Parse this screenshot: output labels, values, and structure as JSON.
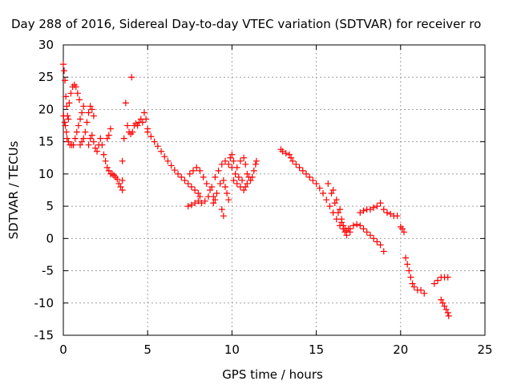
{
  "chart_data": {
    "type": "scatter",
    "title": "Day 288 of 2016, Sidereal Day-to-day VTEC variation (SDTVAR) for receiver ro",
    "xlabel": "GPS time / hours",
    "ylabel": "SDTVAR / TECUs",
    "xlim": [
      0,
      25
    ],
    "ylim": [
      -15,
      30
    ],
    "x_ticks": [
      0,
      5,
      10,
      15,
      20,
      25
    ],
    "y_ticks": [
      -15,
      -10,
      -5,
      0,
      5,
      10,
      15,
      20,
      25,
      30
    ],
    "grid": true,
    "marker": "plus",
    "color": "#ff0000",
    "series": [
      {
        "points": [
          [
            0.0,
            27.0
          ],
          [
            0.05,
            26.0
          ],
          [
            0.1,
            24.5
          ],
          [
            0.15,
            22.0
          ],
          [
            0.2,
            20.5
          ],
          [
            0.25,
            19.0
          ],
          [
            0.3,
            18.5
          ],
          [
            0.02,
            19.0
          ],
          [
            0.08,
            18.0
          ],
          [
            0.12,
            17.5
          ],
          [
            0.18,
            16.5
          ],
          [
            0.22,
            15.5
          ],
          [
            0.3,
            15.0
          ],
          [
            0.4,
            14.5
          ],
          [
            0.5,
            14.5
          ],
          [
            0.35,
            21.0
          ],
          [
            0.45,
            22.5
          ],
          [
            0.55,
            23.5
          ],
          [
            0.65,
            23.8
          ],
          [
            0.75,
            23.5
          ],
          [
            0.85,
            22.5
          ],
          [
            0.95,
            21.5
          ],
          [
            0.6,
            14.5
          ],
          [
            0.7,
            15.5
          ],
          [
            0.8,
            16.5
          ],
          [
            0.9,
            17.5
          ],
          [
            1.0,
            18.5
          ],
          [
            1.1,
            19.5
          ],
          [
            1.2,
            20.5
          ],
          [
            1.0,
            14.5
          ],
          [
            1.1,
            15.0
          ],
          [
            1.2,
            15.5
          ],
          [
            1.3,
            16.5
          ],
          [
            1.4,
            18.0
          ],
          [
            1.5,
            19.5
          ],
          [
            1.6,
            20.5
          ],
          [
            1.7,
            20.0
          ],
          [
            1.8,
            19.0
          ],
          [
            1.5,
            14.5
          ],
          [
            1.6,
            15.5
          ],
          [
            1.7,
            16.0
          ],
          [
            1.8,
            15.0
          ],
          [
            1.9,
            14.0
          ],
          [
            2.0,
            13.5
          ],
          [
            2.1,
            14.5
          ],
          [
            2.2,
            15.5
          ],
          [
            2.3,
            14.5
          ],
          [
            2.4,
            13.0
          ],
          [
            2.5,
            12.0
          ],
          [
            2.6,
            11.0
          ],
          [
            2.7,
            10.5
          ],
          [
            2.8,
            10.0
          ],
          [
            2.9,
            10.0
          ],
          [
            3.0,
            9.8
          ],
          [
            3.1,
            9.5
          ],
          [
            3.2,
            9.2
          ],
          [
            3.3,
            8.5
          ],
          [
            3.4,
            8.0
          ],
          [
            3.5,
            7.5
          ],
          [
            3.5,
            12.0
          ],
          [
            3.5,
            9.0
          ],
          [
            2.7,
            16.0
          ],
          [
            2.8,
            17.0
          ],
          [
            2.6,
            15.5
          ],
          [
            3.6,
            15.5
          ],
          [
            3.8,
            17.5
          ],
          [
            3.9,
            16.5
          ],
          [
            4.0,
            16.2
          ],
          [
            4.1,
            16.5
          ],
          [
            4.2,
            17.5
          ],
          [
            4.3,
            17.8
          ],
          [
            4.4,
            17.5
          ],
          [
            4.5,
            18.0
          ],
          [
            4.6,
            18.5
          ],
          [
            4.7,
            18.0
          ],
          [
            4.8,
            19.5
          ],
          [
            4.9,
            18.5
          ],
          [
            5.0,
            17.0
          ],
          [
            3.7,
            21.0
          ],
          [
            4.05,
            25.0
          ]
        ]
      },
      {
        "points": [
          [
            5.0,
            16.5
          ],
          [
            5.2,
            15.8
          ],
          [
            5.4,
            15.0
          ],
          [
            5.6,
            14.3
          ],
          [
            5.8,
            13.5
          ],
          [
            6.0,
            12.7
          ],
          [
            6.2,
            12.0
          ],
          [
            6.4,
            11.3
          ],
          [
            6.6,
            10.6
          ],
          [
            6.8,
            10.0
          ],
          [
            7.0,
            9.5
          ],
          [
            7.2,
            9.0
          ],
          [
            7.4,
            8.5
          ],
          [
            7.6,
            8.0
          ],
          [
            7.8,
            7.5
          ],
          [
            8.0,
            7.0
          ],
          [
            8.1,
            6.5
          ],
          [
            7.5,
            10.0
          ],
          [
            7.7,
            10.5
          ],
          [
            7.9,
            11.0
          ],
          [
            8.1,
            10.5
          ],
          [
            8.3,
            9.5
          ],
          [
            8.5,
            8.5
          ],
          [
            8.7,
            7.5
          ],
          [
            8.9,
            6.5
          ],
          [
            9.0,
            6.0
          ],
          [
            7.4,
            5.0
          ],
          [
            7.6,
            5.2
          ],
          [
            7.8,
            5.5
          ],
          [
            8.0,
            5.8
          ],
          [
            8.2,
            5.5
          ],
          [
            8.4,
            5.8
          ],
          [
            8.6,
            6.5
          ],
          [
            8.8,
            8.0
          ],
          [
            9.0,
            9.5
          ],
          [
            9.2,
            10.5
          ],
          [
            9.4,
            11.5
          ],
          [
            9.6,
            12.0
          ],
          [
            9.8,
            11.5
          ],
          [
            10.0,
            11.0
          ],
          [
            10.2,
            10.0
          ],
          [
            10.4,
            9.5
          ],
          [
            10.6,
            9.0
          ],
          [
            8.9,
            5.5
          ],
          [
            9.1,
            7.0
          ],
          [
            9.3,
            8.5
          ],
          [
            9.5,
            9.0
          ],
          [
            9.6,
            8.0
          ],
          [
            9.7,
            7.0
          ],
          [
            9.8,
            6.0
          ],
          [
            9.4,
            4.5
          ],
          [
            9.5,
            3.5
          ],
          [
            9.9,
            12.5
          ],
          [
            10.0,
            13.0
          ],
          [
            10.1,
            12.0
          ],
          [
            10.3,
            11.0
          ],
          [
            10.5,
            12.0
          ],
          [
            10.7,
            12.5
          ],
          [
            10.8,
            11.5
          ],
          [
            10.9,
            10.0
          ],
          [
            11.0,
            9.5
          ],
          [
            11.1,
            9.0
          ],
          [
            11.2,
            9.5
          ],
          [
            11.3,
            10.5
          ],
          [
            11.4,
            11.5
          ],
          [
            11.45,
            12.0
          ],
          [
            10.1,
            9.0
          ],
          [
            10.3,
            8.5
          ],
          [
            10.5,
            8.0
          ],
          [
            10.7,
            7.5
          ],
          [
            10.8,
            8.0
          ],
          [
            10.9,
            8.5
          ]
        ]
      },
      {
        "points": [
          [
            12.9,
            13.8
          ],
          [
            13.0,
            13.5
          ],
          [
            13.2,
            13.2
          ],
          [
            13.4,
            13.0
          ],
          [
            13.5,
            12.5
          ],
          [
            13.6,
            12.0
          ],
          [
            13.8,
            11.5
          ],
          [
            14.0,
            11.0
          ],
          [
            14.2,
            10.5
          ],
          [
            14.4,
            10.0
          ],
          [
            14.6,
            9.5
          ],
          [
            14.8,
            9.0
          ],
          [
            15.0,
            8.5
          ],
          [
            15.2,
            7.8
          ],
          [
            15.4,
            7.0
          ],
          [
            15.6,
            6.0
          ],
          [
            15.8,
            5.0
          ],
          [
            16.0,
            4.0
          ],
          [
            16.2,
            3.0
          ],
          [
            16.4,
            2.0
          ],
          [
            16.6,
            1.5
          ],
          [
            16.8,
            1.2
          ],
          [
            17.0,
            1.0
          ],
          [
            15.7,
            8.5
          ],
          [
            15.9,
            7.0
          ],
          [
            16.1,
            5.5
          ],
          [
            16.3,
            4.0
          ],
          [
            16.5,
            2.5
          ],
          [
            16.7,
            1.5
          ],
          [
            16.9,
            1.5
          ],
          [
            16.0,
            7.5
          ],
          [
            16.2,
            6.0
          ],
          [
            16.4,
            4.5
          ],
          [
            16.5,
            3.0
          ],
          [
            16.6,
            2.0
          ],
          [
            16.7,
            1.0
          ],
          [
            16.8,
            0.5
          ],
          [
            17.0,
            1.5
          ],
          [
            17.2,
            2.0
          ],
          [
            17.4,
            2.2
          ],
          [
            17.6,
            2.0
          ],
          [
            17.8,
            1.5
          ],
          [
            18.0,
            1.0
          ],
          [
            18.2,
            0.5
          ],
          [
            18.4,
            0.0
          ],
          [
            18.6,
            -0.5
          ],
          [
            18.8,
            -1.0
          ],
          [
            19.0,
            -2.0
          ],
          [
            17.6,
            4.0
          ],
          [
            17.8,
            4.3
          ],
          [
            18.0,
            4.5
          ],
          [
            18.2,
            4.5
          ],
          [
            18.4,
            4.8
          ],
          [
            18.6,
            5.0
          ],
          [
            18.8,
            5.5
          ],
          [
            19.0,
            4.5
          ],
          [
            19.2,
            4.0
          ],
          [
            19.4,
            3.8
          ],
          [
            19.6,
            3.5
          ],
          [
            19.8,
            3.5
          ],
          [
            20.0,
            1.8
          ],
          [
            20.1,
            1.5
          ],
          [
            20.2,
            1.0
          ],
          [
            20.3,
            -3.0
          ],
          [
            20.4,
            -4.0
          ],
          [
            20.5,
            -5.0
          ],
          [
            20.6,
            -6.0
          ],
          [
            20.7,
            -7.0
          ],
          [
            20.8,
            -7.5
          ],
          [
            21.0,
            -8.0
          ],
          [
            21.2,
            -8.0
          ],
          [
            21.4,
            -8.5
          ],
          [
            22.0,
            -7.0
          ],
          [
            22.2,
            -6.5
          ],
          [
            22.4,
            -6.0
          ],
          [
            22.6,
            -6.0
          ],
          [
            22.8,
            -6.0
          ],
          [
            22.4,
            -9.5
          ],
          [
            22.5,
            -10.0
          ],
          [
            22.6,
            -10.5
          ],
          [
            22.7,
            -11.0
          ],
          [
            22.8,
            -11.5
          ],
          [
            22.85,
            -12.0
          ]
        ]
      }
    ]
  }
}
